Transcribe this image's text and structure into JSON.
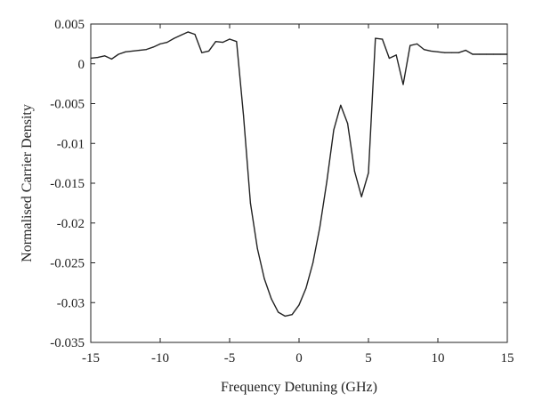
{
  "chart_data": {
    "type": "line",
    "title": "",
    "xlabel": "Frequency Detuning (GHz)",
    "ylabel": "Normalised Carrier Density",
    "xlim": [
      -15,
      15
    ],
    "ylim": [
      -0.035,
      0.005
    ],
    "grid": false,
    "line_color": "#222222",
    "x_ticks": [
      -15,
      -10,
      -5,
      0,
      5,
      10,
      15
    ],
    "x_tick_labels": [
      "-15",
      "-10",
      "-5",
      "0",
      "5",
      "10",
      "15"
    ],
    "y_ticks": [
      0.005,
      0,
      -0.005,
      -0.01,
      -0.015,
      -0.02,
      -0.025,
      -0.03,
      -0.035
    ],
    "y_tick_labels": [
      "0.005",
      "0",
      "-0.005",
      "-0.01",
      "-0.015",
      "-0.02",
      "-0.025",
      "-0.03",
      "-0.035"
    ],
    "series": [
      {
        "x": [
          -15,
          -14.5,
          -14,
          -13.5,
          -13,
          -12.5,
          -12,
          -11.5,
          -11,
          -10.5,
          -10,
          -9.5,
          -9,
          -8.5,
          -8,
          -7.5,
          -7,
          -6.5,
          -6,
          -5.5,
          -5,
          -4.5,
          -4,
          -3.5,
          -3,
          -2.5,
          -2,
          -1.5,
          -1,
          -0.5,
          0,
          0.5,
          1,
          1.5,
          2,
          2.5,
          3,
          3.5,
          4,
          4.5,
          5,
          5.5,
          6,
          6.5,
          7,
          7.5,
          8,
          8.5,
          9,
          9.5,
          10,
          10.5,
          11,
          11.5,
          12,
          12.5,
          13,
          13.5,
          14,
          14.5,
          15
        ],
        "y": [
          0.0007,
          0.0008,
          0.001,
          0.0006,
          0.0012,
          0.0015,
          0.0016,
          0.0017,
          0.0018,
          0.0021,
          0.0025,
          0.0027,
          0.0032,
          0.0036,
          0.004,
          0.0037,
          0.0014,
          0.0016,
          0.0028,
          0.0027,
          0.0031,
          0.0028,
          -0.0065,
          -0.0175,
          -0.0232,
          -0.027,
          -0.0295,
          -0.0312,
          -0.0317,
          -0.0315,
          -0.0303,
          -0.0282,
          -0.025,
          -0.0205,
          -0.0148,
          -0.0083,
          -0.0052,
          -0.0075,
          -0.0135,
          -0.0167,
          -0.0137,
          0.0032,
          0.0031,
          0.0007,
          0.0011,
          -0.0026,
          0.0023,
          0.0025,
          0.0018,
          0.0016,
          0.0015,
          0.0014,
          0.0014,
          0.0014,
          0.0017,
          0.0012,
          0.0012,
          0.0012,
          0.0012,
          0.0012,
          0.0012
        ]
      }
    ]
  }
}
